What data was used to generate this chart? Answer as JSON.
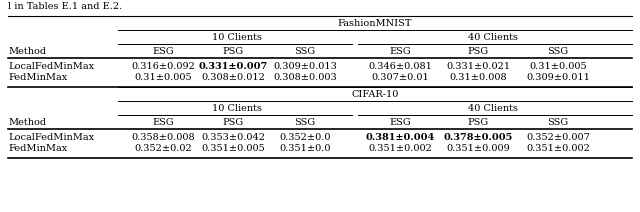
{
  "caption_text": "l in Tables E.1 and E.2.",
  "fashion_header": "FashionMNIST",
  "cifar_header": "CIFAR-10",
  "clients_10": "10 Clients",
  "clients_40": "40 Clients",
  "col_headers": [
    "ESG",
    "PSG",
    "SSG",
    "ESG",
    "PSG",
    "SSG"
  ],
  "method_col": "Method",
  "fashion_rows": [
    {
      "method": "LocalFedMinMax",
      "values": [
        "0.316±0.092",
        "0.331±0.007",
        "0.309±0.013",
        "0.346±0.081",
        "0.331±0.021",
        "0.31±0.005"
      ],
      "bold": [
        false,
        true,
        false,
        false,
        false,
        false
      ]
    },
    {
      "method": "FedMinMax",
      "values": [
        "0.31±0.005",
        "0.308±0.012",
        "0.308±0.003",
        "0.307±0.01",
        "0.31±0.008",
        "0.309±0.011"
      ],
      "bold": [
        false,
        false,
        false,
        false,
        false,
        false
      ]
    }
  ],
  "cifar_rows": [
    {
      "method": "LocalFedMinMax",
      "values": [
        "0.358±0.008",
        "0.353±0.042",
        "0.352±0.0",
        "0.381±0.004",
        "0.378±0.005",
        "0.352±0.007"
      ],
      "bold": [
        false,
        false,
        false,
        true,
        true,
        false
      ]
    },
    {
      "method": "FedMinMax",
      "values": [
        "0.352±0.02",
        "0.351±0.005",
        "0.351±0.0",
        "0.351±0.002",
        "0.351±0.009",
        "0.351±0.002"
      ],
      "bold": [
        false,
        false,
        false,
        false,
        false,
        false
      ]
    }
  ],
  "font_size": 7.0,
  "header_font_size": 7.0,
  "fig_w": 6.4,
  "fig_h": 2.12,
  "dpi": 100
}
